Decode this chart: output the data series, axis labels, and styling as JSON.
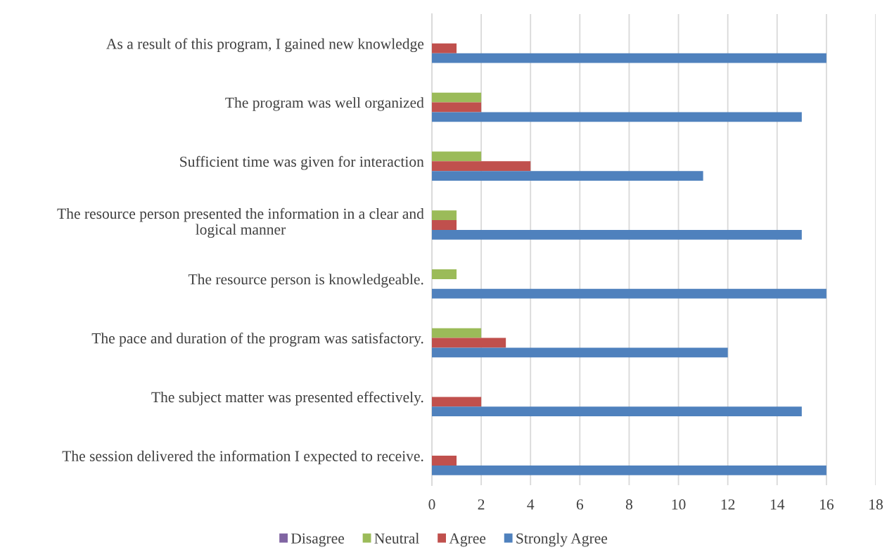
{
  "chart_data": {
    "type": "bar",
    "orientation": "horizontal",
    "categories": [
      "As a result of this program, I gained new knowledge",
      "The program was well organized",
      "Sufficient time was given for interaction",
      "The resource person presented the information in a clear and\nlogical manner",
      "The resource person is knowledgeable.",
      "The pace and duration of the program was satisfactory.",
      "The subject matter was presented effectively.",
      "The session delivered the information I expected to receive."
    ],
    "series": [
      {
        "name": "Disagree",
        "color": "#8064a2",
        "values": [
          0,
          0,
          0,
          0,
          0,
          0,
          0,
          0
        ]
      },
      {
        "name": "Neutral",
        "color": "#9bbb59",
        "values": [
          0,
          2,
          2,
          1,
          1,
          2,
          0,
          0
        ]
      },
      {
        "name": "Agree",
        "color": "#c0504d",
        "values": [
          1,
          2,
          4,
          1,
          0,
          3,
          2,
          1
        ]
      },
      {
        "name": "Strongly Agree",
        "color": "#4f81bd",
        "values": [
          16,
          15,
          11,
          15,
          16,
          12,
          15,
          16
        ]
      }
    ],
    "xlim": [
      0,
      18
    ],
    "xticks": [
      0,
      2,
      4,
      6,
      8,
      10,
      12,
      14,
      16,
      18
    ],
    "grid": "x",
    "legend": "bottom"
  }
}
